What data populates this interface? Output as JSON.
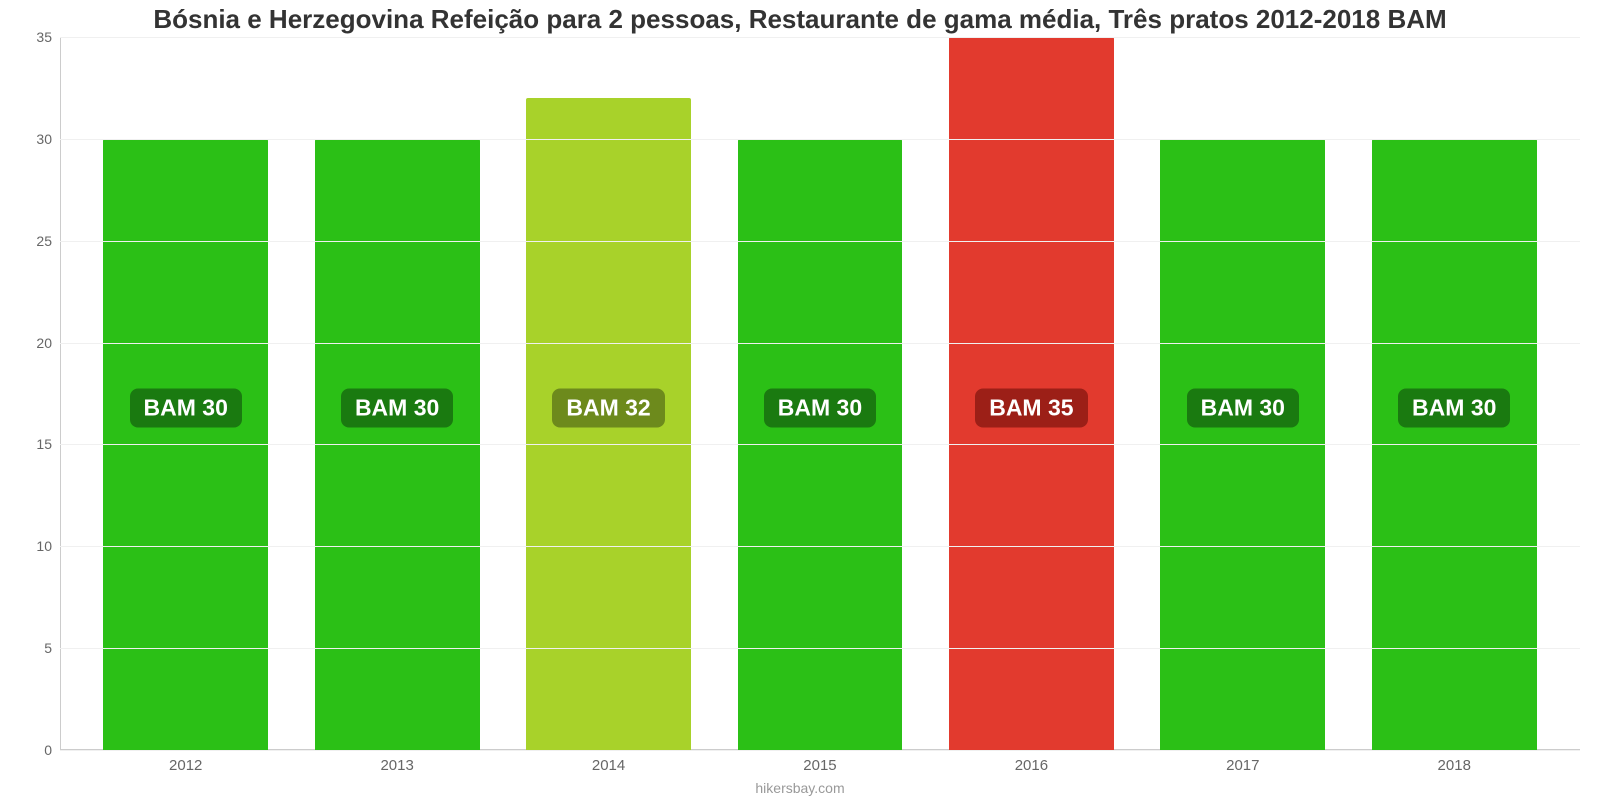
{
  "chart": {
    "type": "bar",
    "title": "Bósnia e Herzegovina Refeição para 2 pessoas, Restaurante de gama média, Três pratos 2012-2018 BAM",
    "title_fontsize": 26,
    "title_color": "#333333",
    "background_color": "#ffffff",
    "grid_color": "#f0f0f0",
    "axis_line_color": "#cccccc",
    "ylim": [
      0,
      35
    ],
    "ytick_step": 5,
    "yticks": [
      0,
      5,
      10,
      15,
      20,
      25,
      30,
      35
    ],
    "ytick_fontsize": 14,
    "ytick_color": "#666666",
    "xtick_fontsize": 15,
    "xtick_color": "#666666",
    "categories": [
      "2012",
      "2013",
      "2014",
      "2015",
      "2016",
      "2017",
      "2018"
    ],
    "values": [
      30,
      30,
      32,
      30,
      35,
      30,
      30
    ],
    "bar_colors": [
      "#2bc016",
      "#2bc016",
      "#a8d22a",
      "#2bc016",
      "#e23a2e",
      "#2bc016",
      "#2bc016"
    ],
    "bar_width": 0.78,
    "value_labels": [
      "BAM 30",
      "BAM 30",
      "BAM 32",
      "BAM 30",
      "BAM 35",
      "BAM 30",
      "BAM 30"
    ],
    "value_label_fontsize": 23,
    "value_label_color": "#ffffff",
    "value_label_bg": [
      "#1a7a10",
      "#1a7a10",
      "#6d8a1c",
      "#1a7a10",
      "#9c1f17",
      "#1a7a10",
      "#1a7a10"
    ],
    "value_label_y_offset_percent": 48,
    "footer": "hikersbay.com",
    "footer_fontsize": 14,
    "footer_color": "#999999"
  }
}
